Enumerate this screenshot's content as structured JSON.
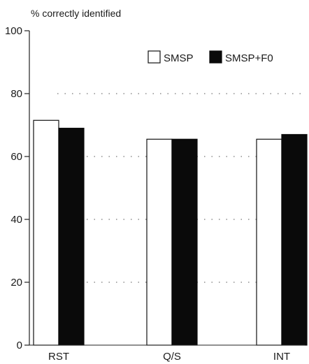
{
  "chart_data": {
    "type": "bar",
    "title": "",
    "ylabel": "% correctly identified",
    "xlabel": "",
    "ylim": [
      0,
      100
    ],
    "yticks": [
      0,
      20,
      40,
      60,
      80,
      100
    ],
    "grid": "dotted horizontal",
    "legend_position": "top-right",
    "categories": [
      "RST",
      "Q/S",
      "INT"
    ],
    "series": [
      {
        "name": "SMSP",
        "values": [
          71.5,
          65.5,
          65.5
        ],
        "color": "#ffffff",
        "edge": "#111111"
      },
      {
        "name": "SMSP+F0",
        "values": [
          69,
          65.5,
          67
        ],
        "color": "#0a0a0a",
        "edge": "#0a0a0a"
      }
    ]
  }
}
